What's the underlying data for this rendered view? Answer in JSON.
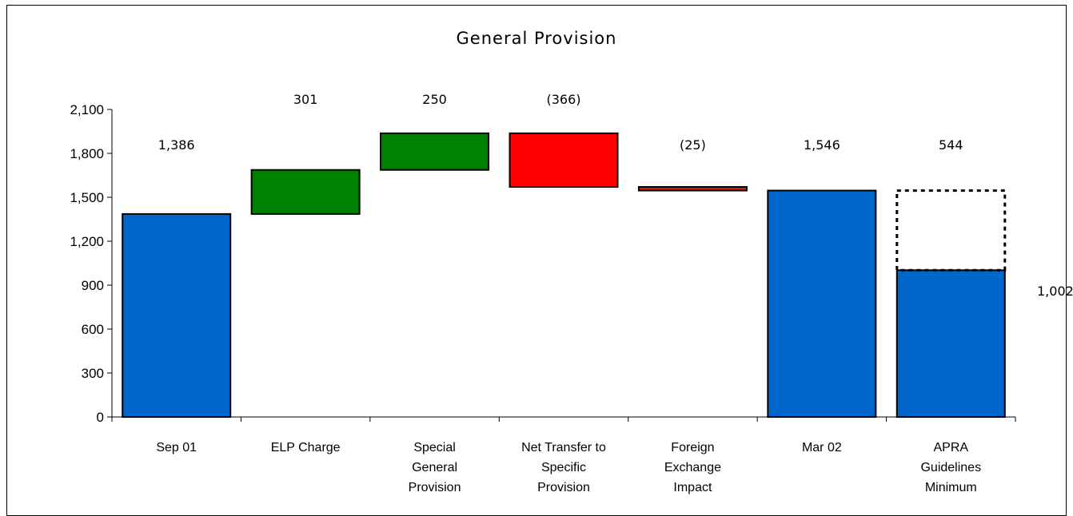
{
  "chart_data": {
    "type": "bar",
    "subtype": "waterfall",
    "title": "General Provision",
    "xlabel": "",
    "ylabel": "",
    "ylim": [
      0,
      2100
    ],
    "yticks": [
      0,
      300,
      600,
      900,
      1200,
      1500,
      1800,
      2100
    ],
    "ytick_labels": [
      "0",
      "300",
      "600",
      "900",
      "1,200",
      "1,500",
      "1,800",
      "2,100"
    ],
    "grid": false,
    "legend": "none",
    "categories": [
      [
        "Sep 01"
      ],
      [
        "ELP Charge"
      ],
      [
        "Special",
        "General",
        "Provision"
      ],
      [
        "Net Transfer to",
        "Specific",
        "Provision"
      ],
      [
        "Foreign",
        "Exchange",
        "Impact"
      ],
      [
        "Mar 02"
      ],
      [
        "APRA",
        "Guidelines",
        "Minimum"
      ]
    ],
    "bars": [
      {
        "kind": "total",
        "start": 0,
        "end": 1386,
        "label": "1,386",
        "color": "#0066CC"
      },
      {
        "kind": "increase",
        "start": 1386,
        "end": 1687,
        "label": "301",
        "color": "#008000"
      },
      {
        "kind": "increase",
        "start": 1687,
        "end": 1937,
        "label": "250",
        "color": "#008000"
      },
      {
        "kind": "decrease",
        "start": 1937,
        "end": 1571,
        "label": "(366)",
        "color": "#FF0000"
      },
      {
        "kind": "decrease",
        "start": 1571,
        "end": 1546,
        "label": "(25)",
        "color": "#CC2200"
      },
      {
        "kind": "total",
        "start": 0,
        "end": 1546,
        "label": "1,546",
        "color": "#0066CC"
      },
      {
        "kind": "total",
        "start": 0,
        "end": 1002,
        "label": "1,002",
        "color": "#0066CC",
        "excess": {
          "start": 1002,
          "end": 1546,
          "label": "544",
          "style": "dotted"
        }
      }
    ]
  }
}
